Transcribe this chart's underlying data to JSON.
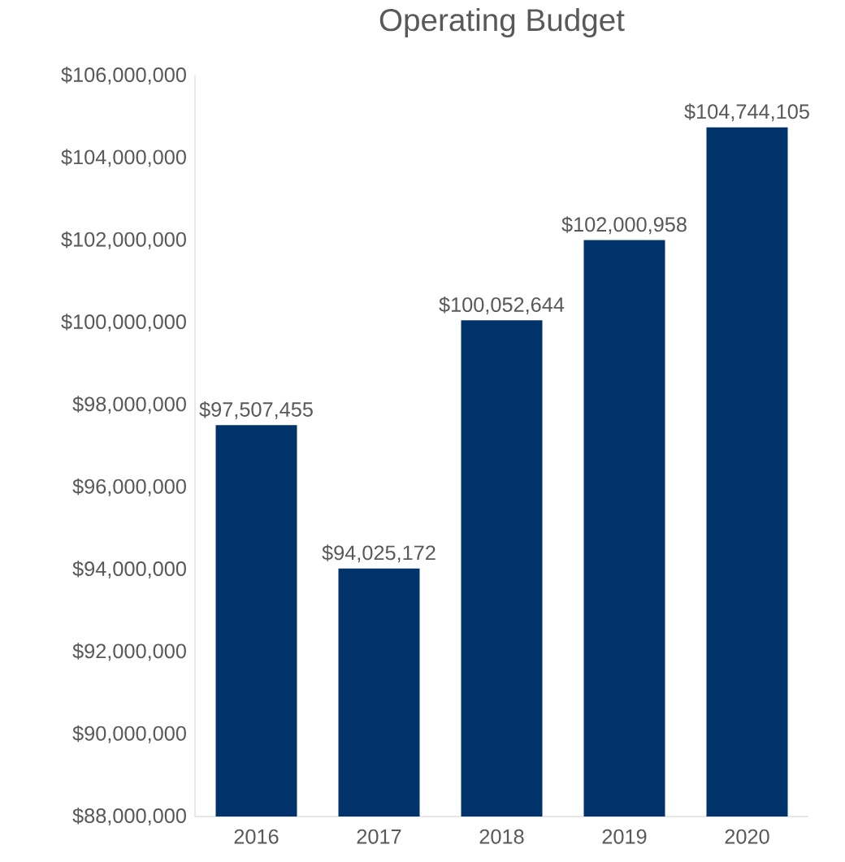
{
  "chart_data": {
    "type": "bar",
    "title": "Operating Budget",
    "categories": [
      "2016",
      "2017",
      "2018",
      "2019",
      "2020"
    ],
    "values": [
      97507455,
      94025172,
      100052644,
      102000958,
      104744105
    ],
    "value_labels": [
      "$97,507,455",
      "$94,025,172",
      "$100,052,644",
      "$102,000,958",
      "$104,744,105"
    ],
    "color": "#00336a",
    "ylim": [
      88000000,
      106000000
    ],
    "yticks": [
      {
        "value": 88000000,
        "label": "$88,000,000"
      },
      {
        "value": 90000000,
        "label": "$90,000,000"
      },
      {
        "value": 92000000,
        "label": "$92,000,000"
      },
      {
        "value": 94000000,
        "label": "$94,000,000"
      },
      {
        "value": 96000000,
        "label": "$96,000,000"
      },
      {
        "value": 98000000,
        "label": "$98,000,000"
      },
      {
        "value": 100000000,
        "label": "$100,000,000"
      },
      {
        "value": 102000000,
        "label": "$102,000,000"
      },
      {
        "value": 104000000,
        "label": "$104,000,000"
      },
      {
        "value": 106000000,
        "label": "$106,000,000"
      }
    ],
    "grid": false
  }
}
